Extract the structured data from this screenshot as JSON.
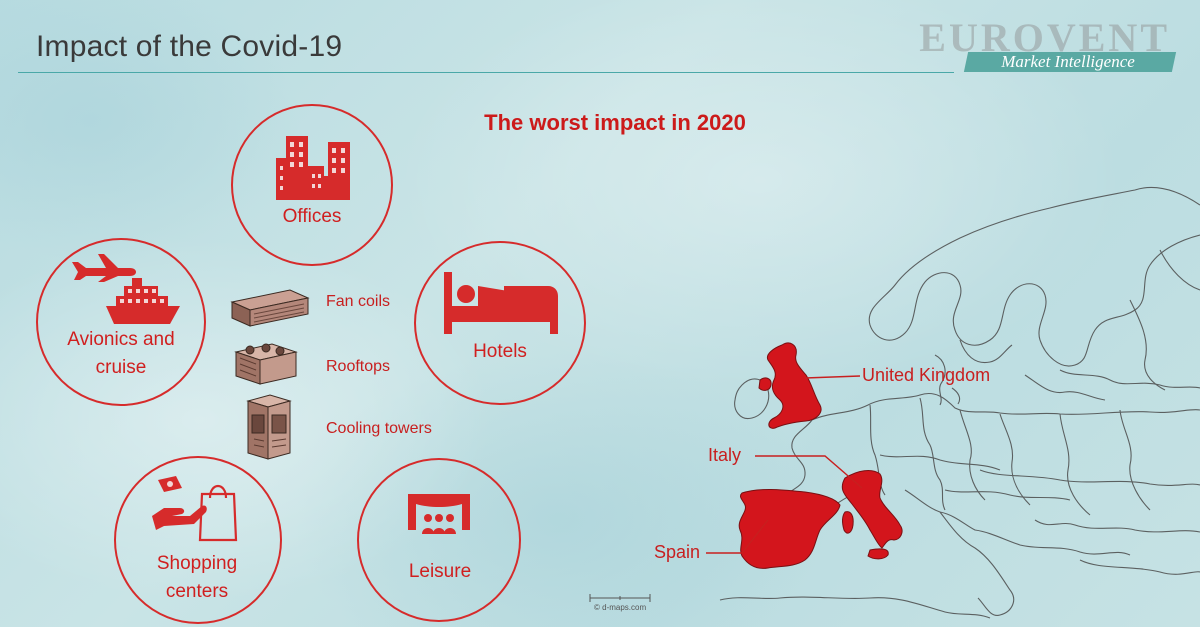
{
  "slide": {
    "title": "Impact of the Covid-19",
    "headline": "The worst impact in 2020"
  },
  "logo": {
    "name": "EUROVENT",
    "subtitle": "Market Intelligence"
  },
  "sectors": [
    {
      "label": "Offices",
      "icon": "office-buildings-icon"
    },
    {
      "label": "Hotels",
      "icon": "hotel-bed-icon"
    },
    {
      "label": "Avionics and cruise",
      "lines": [
        "Avionics and",
        "cruise"
      ],
      "icons": [
        "airplane-icon",
        "cruise-ship-icon"
      ]
    },
    {
      "label": "Shopping centers",
      "lines": [
        "Shopping",
        "centers"
      ],
      "icon": "shopping-bag-icon"
    },
    {
      "label": "Leisure",
      "icon": "theater-icon"
    }
  ],
  "products": [
    {
      "label": "Fan coils",
      "icon": "fan-coil-unit-icon"
    },
    {
      "label": "Rooftops",
      "icon": "rooftop-unit-icon"
    },
    {
      "label": "Cooling towers",
      "icon": "cooling-tower-icon"
    }
  ],
  "countries": [
    {
      "label": "United Kingdom"
    },
    {
      "label": "Italy"
    },
    {
      "label": "Spain"
    }
  ],
  "map": {
    "credit": "© d-maps.com"
  },
  "colors": {
    "accent": "#d62b2b",
    "country_fill": "#d3151c",
    "title_rule": "#4aa8a8"
  }
}
